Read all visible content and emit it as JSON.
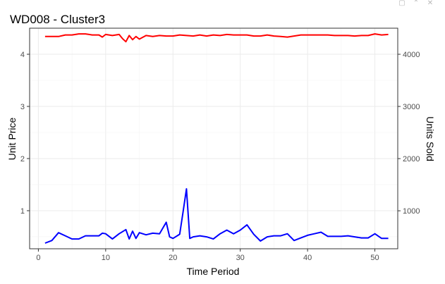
{
  "window": {
    "icons": [
      "restore-icon",
      "collapse-icon",
      "close-icon"
    ]
  },
  "chart_data": {
    "type": "line",
    "title": "WD008 - Cluster3",
    "xlabel": "Time Period",
    "ylabel_left": "Unit Price",
    "ylabel_right": "Units Sold",
    "x_ticks": [
      0,
      10,
      20,
      30,
      40,
      50
    ],
    "y_left_ticks": [
      1,
      2,
      3,
      4
    ],
    "y_right_ticks": [
      1000,
      2000,
      3000,
      4000
    ],
    "y_left_tick_labels": [
      "1",
      "2",
      "3",
      "4"
    ],
    "y_right_tick_labels": [
      "1000",
      "2000",
      "3000",
      "4000"
    ],
    "x_tick_labels": [
      "0",
      "10",
      "20",
      "30",
      "40",
      "50"
    ],
    "xlim": [
      -1.3,
      53.4
    ],
    "ylim_left": [
      0.27,
      4.5
    ],
    "ylim_right": [
      272,
      4500
    ],
    "grid": true,
    "series": [
      {
        "axis": "left",
        "color": "#ff0000",
        "x": [
          1,
          2,
          3,
          4,
          5,
          6,
          7,
          8,
          9,
          9.5,
          10,
          11,
          12,
          12.5,
          13,
          13.5,
          14,
          14.5,
          15,
          16,
          17,
          18,
          19,
          20,
          21,
          22,
          23,
          24,
          25,
          26,
          27,
          28,
          29,
          30,
          31,
          32,
          33,
          34,
          35,
          36,
          37,
          38,
          39,
          40,
          41,
          42,
          43,
          44,
          45,
          46,
          47,
          48,
          49,
          50,
          51,
          52
        ],
        "y": [
          4.34,
          4.34,
          4.34,
          4.37,
          4.37,
          4.39,
          4.39,
          4.37,
          4.37,
          4.33,
          4.38,
          4.36,
          4.38,
          4.3,
          4.24,
          4.36,
          4.28,
          4.34,
          4.29,
          4.36,
          4.34,
          4.36,
          4.35,
          4.35,
          4.37,
          4.36,
          4.35,
          4.37,
          4.35,
          4.37,
          4.36,
          4.38,
          4.37,
          4.37,
          4.37,
          4.35,
          4.35,
          4.37,
          4.35,
          4.34,
          4.33,
          4.35,
          4.37,
          4.37,
          4.37,
          4.37,
          4.37,
          4.36,
          4.36,
          4.36,
          4.35,
          4.36,
          4.36,
          4.39,
          4.37,
          4.38
        ]
      },
      {
        "axis": "right",
        "color": "#0000ff",
        "x": [
          1,
          2,
          3,
          4,
          5,
          6,
          7,
          8,
          9,
          9.5,
          10,
          11,
          12,
          13,
          13.5,
          14,
          14.5,
          15,
          16,
          17,
          18,
          19,
          19.5,
          20,
          21,
          21.5,
          22,
          22.5,
          23,
          24,
          25,
          26,
          27,
          28,
          29,
          30,
          31,
          32,
          33,
          34,
          35,
          36,
          37,
          38,
          39,
          40,
          41,
          42,
          43,
          44,
          45,
          46,
          47,
          48,
          49,
          50,
          51,
          52
        ],
        "y": [
          380,
          430,
          580,
          520,
          460,
          460,
          520,
          520,
          520,
          570,
          560,
          460,
          560,
          640,
          460,
          610,
          470,
          580,
          540,
          570,
          560,
          780,
          500,
          470,
          550,
          980,
          1420,
          470,
          500,
          520,
          500,
          460,
          560,
          630,
          560,
          630,
          730,
          550,
          420,
          500,
          520,
          520,
          560,
          430,
          480,
          530,
          560,
          590,
          510,
          510,
          510,
          520,
          500,
          480,
          480,
          560,
          470,
          470
        ]
      }
    ]
  }
}
